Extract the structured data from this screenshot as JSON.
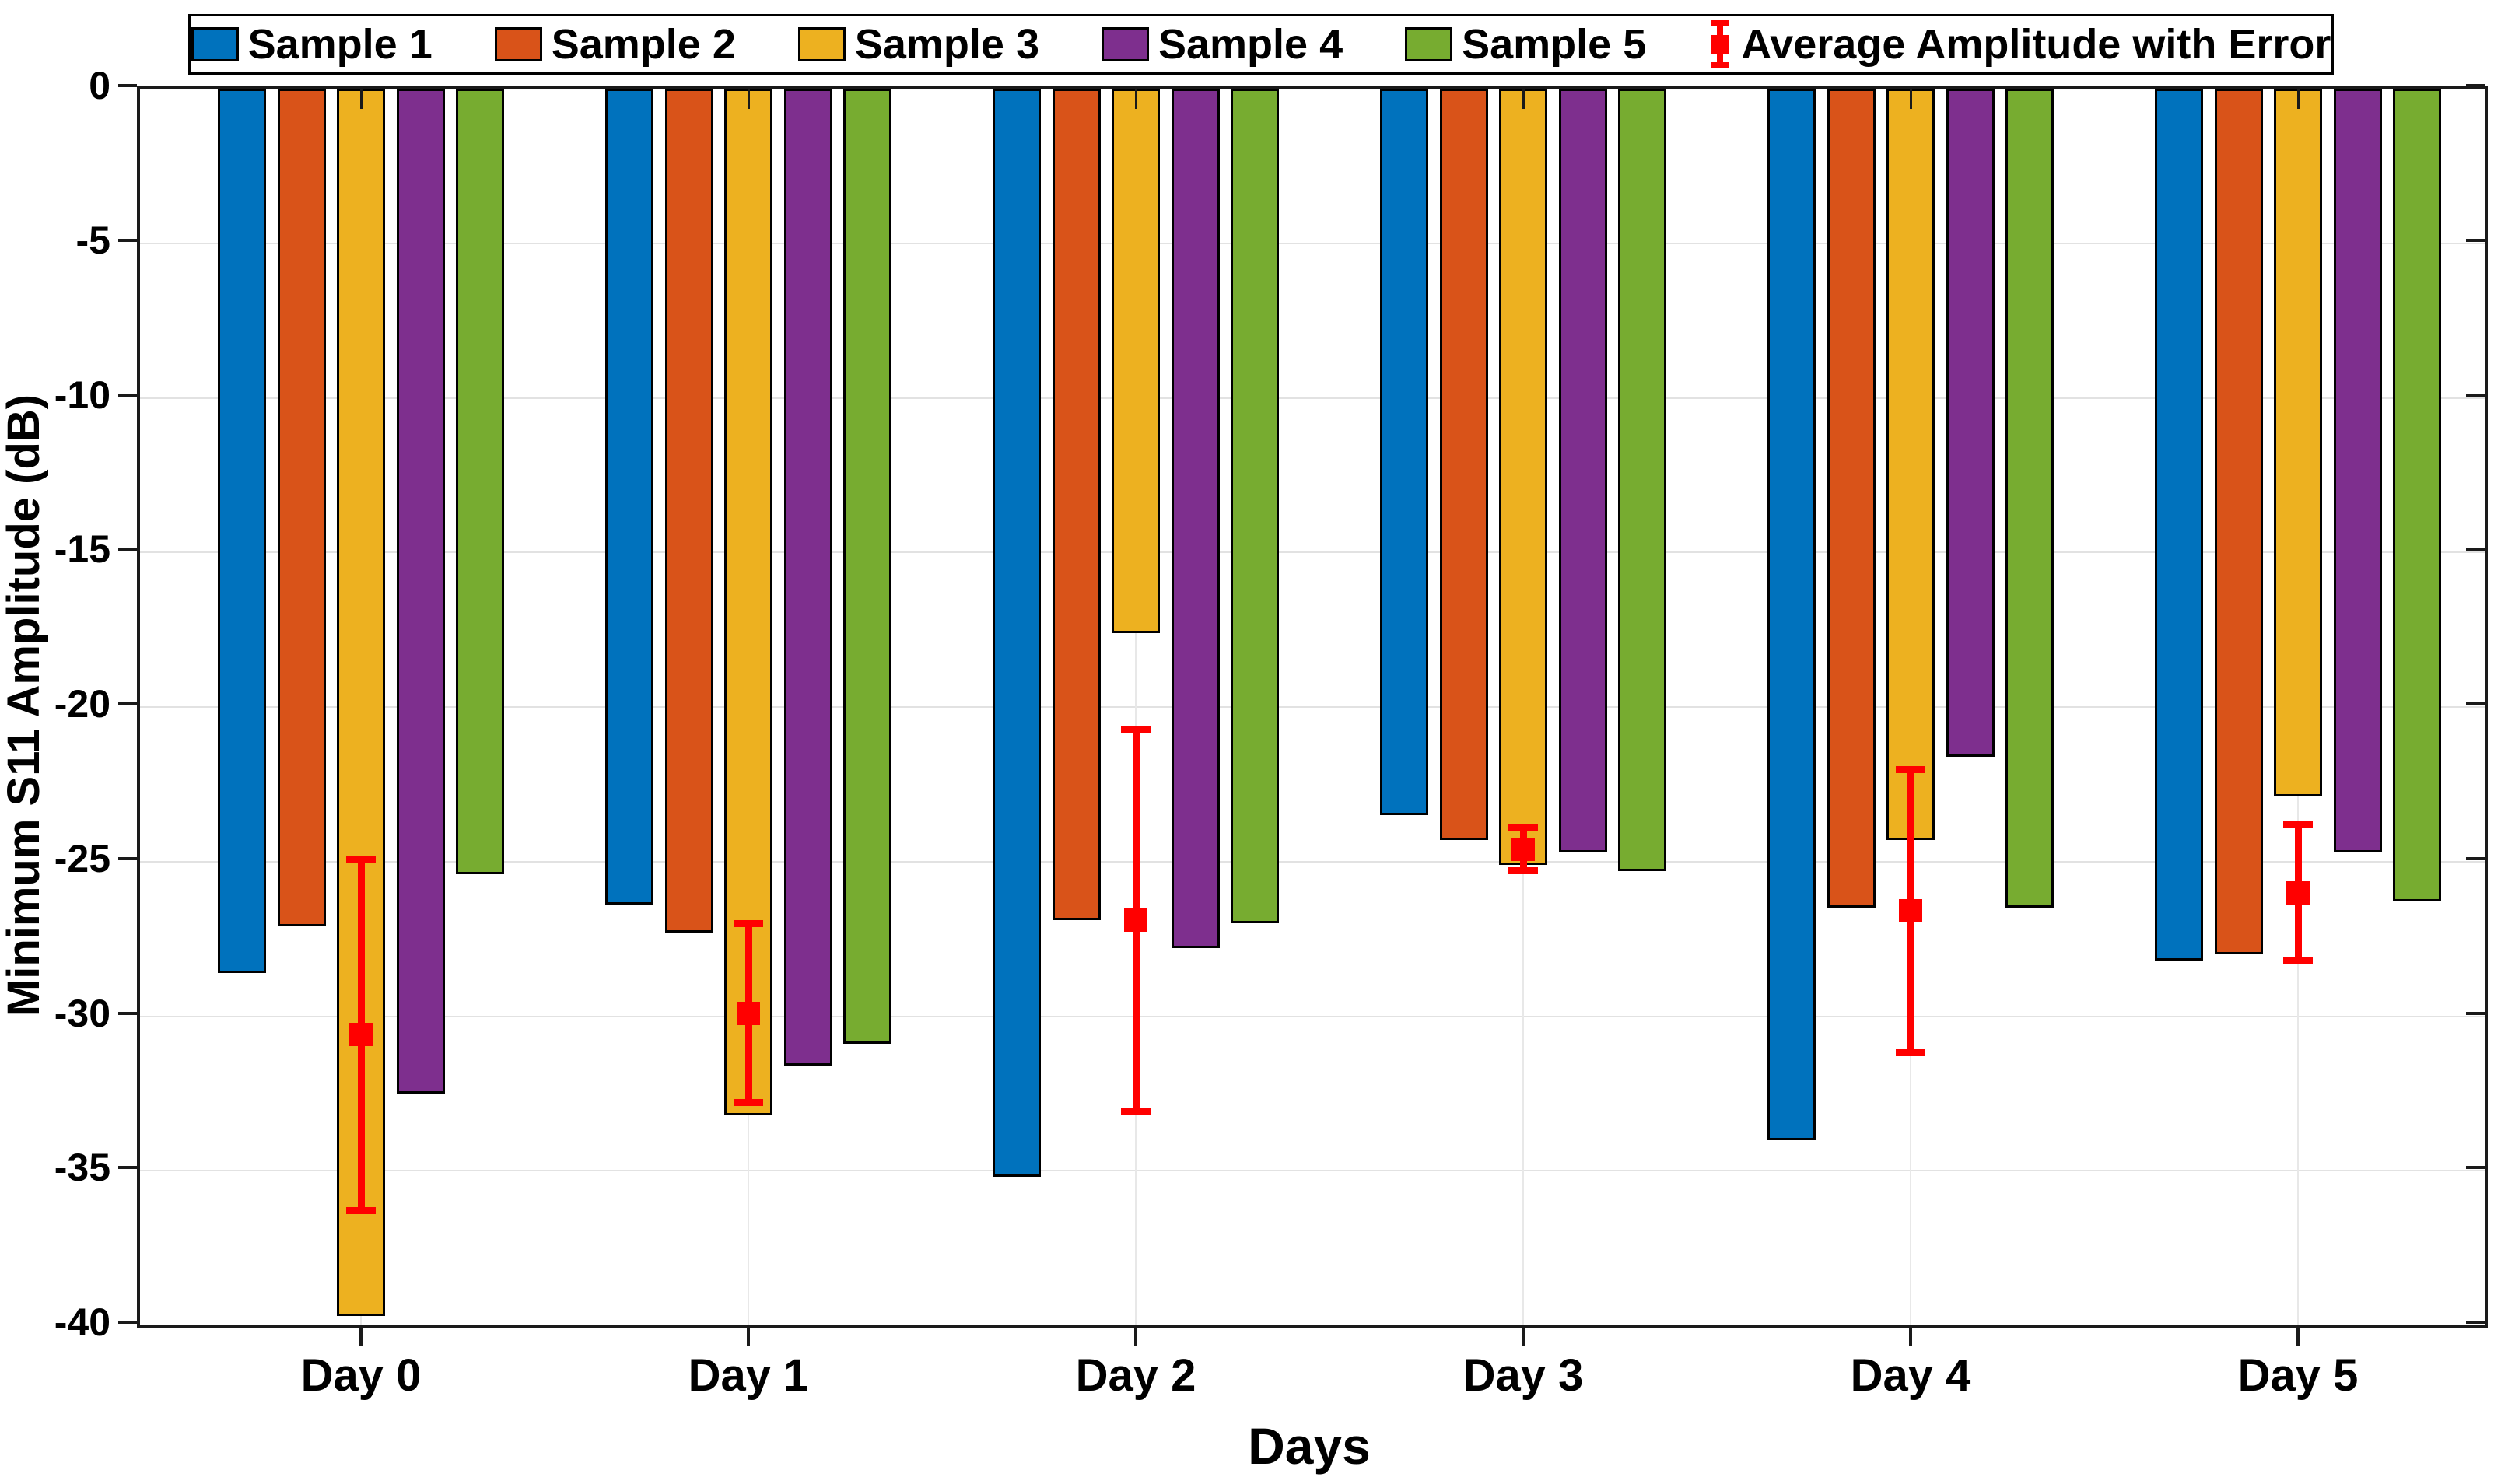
{
  "figure": {
    "background": "#ffffff",
    "axis_color": "#1a1a1a",
    "grid_color": "#e2e2e2"
  },
  "chart_data": {
    "type": "bar",
    "title": "",
    "xlabel": "Days",
    "ylabel": "Minimum S11 Amplitude (dB)",
    "categories": [
      "Day 0",
      "Day 1",
      "Day 2",
      "Day 3",
      "Day 4",
      "Day 5"
    ],
    "ylim": [
      -40,
      0
    ],
    "yticks": [
      0,
      -5,
      -10,
      -15,
      -20,
      -25,
      -30,
      -35,
      -40
    ],
    "ytick_labels": [
      "0",
      "-5",
      "-10",
      "-15",
      "-20",
      "-25",
      "-30",
      "-35",
      "-40"
    ],
    "grid": "on",
    "legend_position": "top",
    "series": [
      {
        "name": "Sample 1",
        "color": "#0072BD",
        "values": [
          -28.6,
          -26.4,
          -35.2,
          -23.5,
          -34.0,
          -28.2
        ]
      },
      {
        "name": "Sample 2",
        "color": "#D95319",
        "values": [
          -27.1,
          -27.3,
          -26.9,
          -24.3,
          -26.5,
          -28.0
        ]
      },
      {
        "name": "Sample 3",
        "color": "#EDB120",
        "values": [
          -39.7,
          -33.2,
          -17.6,
          -25.1,
          -24.3,
          -22.9
        ]
      },
      {
        "name": "Sample 4",
        "color": "#7E2F8E",
        "values": [
          -32.5,
          -31.6,
          -27.8,
          -24.7,
          -21.6,
          -24.7
        ]
      },
      {
        "name": "Sample 5",
        "color": "#77AC30",
        "values": [
          -25.4,
          -30.9,
          -27.0,
          -25.3,
          -26.5,
          -26.3
        ]
      }
    ],
    "errorbar": {
      "name": "Average Amplitude with Error",
      "color": "#FF0000",
      "means": [
        -30.6,
        -29.9,
        -26.9,
        -24.6,
        -26.6,
        -26.0
      ],
      "errors": [
        5.7,
        2.9,
        6.2,
        0.7,
        4.6,
        2.2
      ]
    }
  }
}
